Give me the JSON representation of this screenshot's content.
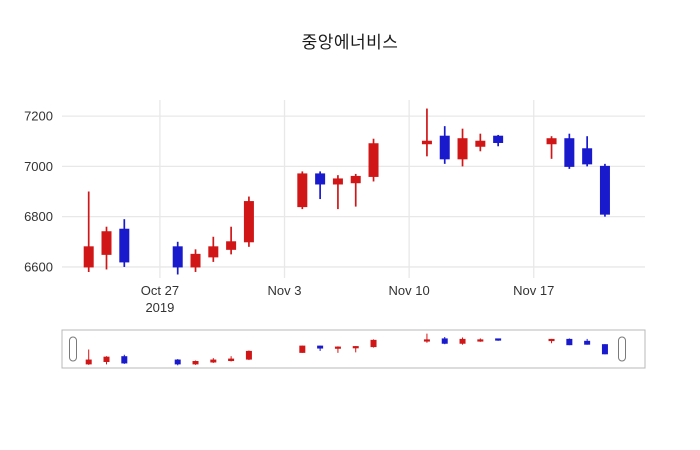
{
  "colors": {
    "background": "#ffffff",
    "up": "#d01616",
    "down": "#1a1acd",
    "grid": "#e8e8e8",
    "axis_text": "#333333",
    "title_text": "#1a1a1a",
    "slider_border": "#b8b8b8",
    "handle_border": "#7a7a7a",
    "handle_fill": "#ffffff"
  },
  "chart_data": {
    "type": "candlestick",
    "title": "중앙에너비스",
    "legend": "none",
    "grid": true,
    "rangeslider": true,
    "x": [
      "2019-10-23",
      "2019-10-24",
      "2019-10-25",
      "2019-10-28",
      "2019-10-29",
      "2019-10-30",
      "2019-10-31",
      "2019-11-01",
      "2019-11-04",
      "2019-11-05",
      "2019-11-06",
      "2019-11-07",
      "2019-11-08",
      "2019-11-11",
      "2019-11-12",
      "2019-11-13",
      "2019-11-14",
      "2019-11-15",
      "2019-11-18",
      "2019-11-19",
      "2019-11-20",
      "2019-11-21"
    ],
    "open": [
      6600,
      6650,
      6750,
      6680,
      6600,
      6640,
      6670,
      6700,
      6840,
      6970,
      6930,
      6935,
      6960,
      7090,
      7120,
      7030,
      7080,
      7120,
      7090,
      7110,
      7070,
      7000
    ],
    "high": [
      6900,
      6760,
      6790,
      6700,
      6670,
      6720,
      6760,
      6880,
      6980,
      6980,
      6965,
      6970,
      7110,
      7230,
      7160,
      7150,
      7130,
      7125,
      7120,
      7130,
      7120,
      7010
    ],
    "low": [
      6580,
      6590,
      6600,
      6570,
      6580,
      6620,
      6650,
      6680,
      6830,
      6870,
      6830,
      6840,
      6940,
      7040,
      7010,
      7000,
      7060,
      7080,
      7030,
      6990,
      7000,
      6800
    ],
    "close": [
      6680,
      6740,
      6620,
      6600,
      6650,
      6680,
      6700,
      6860,
      6970,
      6930,
      6950,
      6960,
      7090,
      7100,
      7030,
      7110,
      7100,
      7095,
      7110,
      7000,
      7010,
      6810
    ],
    "xaxis": {
      "range": [
        "2019-10-21T12:00:00Z",
        "2019-11-23T06:00:00Z"
      ],
      "ticks": [
        {
          "date": "2019-10-27",
          "label": "Oct 27",
          "sublabel": "2019"
        },
        {
          "date": "2019-11-03",
          "label": "Nov 3",
          "sublabel": ""
        },
        {
          "date": "2019-11-10",
          "label": "Nov 10",
          "sublabel": ""
        },
        {
          "date": "2019-11-17",
          "label": "Nov 17",
          "sublabel": ""
        }
      ]
    },
    "yaxis": {
      "range": [
        6556,
        7264
      ],
      "ticks": [
        {
          "value": 6600,
          "label": "6600"
        },
        {
          "value": 6800,
          "label": "6800"
        },
        {
          "value": 7000,
          "label": "7000"
        },
        {
          "value": 7200,
          "label": "7200"
        }
      ]
    }
  }
}
